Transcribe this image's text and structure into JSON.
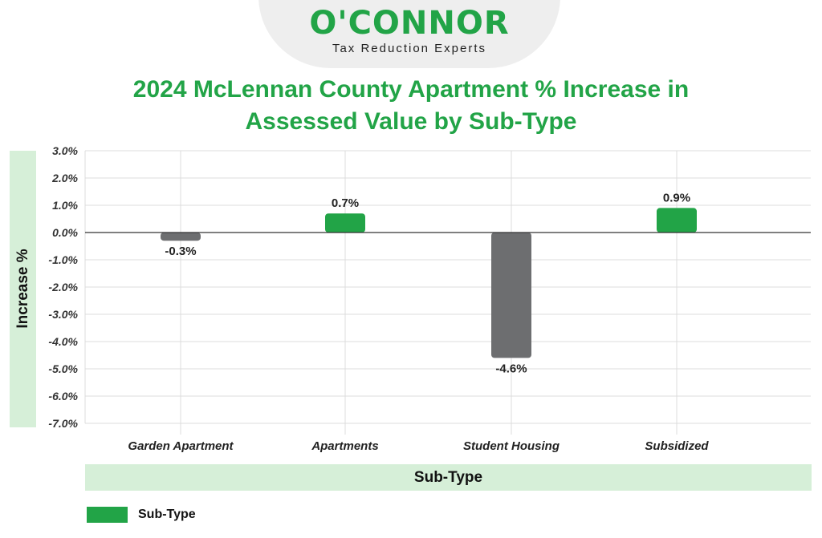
{
  "logo": {
    "name": "O'CONNOR",
    "tagline": "Tax Reduction Experts"
  },
  "chart_data": {
    "type": "bar",
    "title": "2024 McLennan County Apartment % Increase in Assessed Value by Sub-Type",
    "title_lines": [
      "2024 McLennan County Apartment % Increase in",
      "Assessed Value by Sub-Type"
    ],
    "xlabel": "Sub-Type",
    "ylabel": "Increase %",
    "categories": [
      "Garden Apartment",
      "Apartments",
      "Student Housing",
      "Subsidized"
    ],
    "values": [
      -0.3,
      0.7,
      -4.6,
      0.9
    ],
    "value_labels": [
      "-0.3%",
      "0.7%",
      "-4.6%",
      "0.9%"
    ],
    "ylim": [
      -7,
      3
    ],
    "yticks": [
      3,
      2,
      1,
      0,
      -1,
      -2,
      -3,
      -4,
      -5,
      -6,
      -7
    ],
    "ytick_labels": [
      "3.0%",
      "2.0%",
      "1.0%",
      "0.0%",
      "-1.0%",
      "-2.0%",
      "-3.0%",
      "-4.0%",
      "-5.0%",
      "-6.0%",
      "-7.0%"
    ],
    "grid": true,
    "legend": {
      "label": "Sub-Type",
      "position": "bottom-left"
    },
    "colors": {
      "positive": "#22a447",
      "negative": "#6d6e70",
      "brand": "#22a447"
    }
  }
}
